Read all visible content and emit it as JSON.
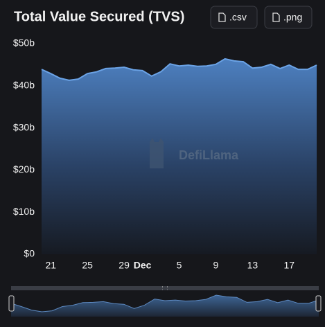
{
  "chart_data": {
    "type": "area",
    "title": "Total Value Secured (TVS)",
    "buttons": [
      ".csv",
      ".png"
    ],
    "watermark": "DefiLlama",
    "categories": [
      null,
      "21",
      null,
      null,
      null,
      "25",
      null,
      null,
      null,
      "29",
      null,
      "Dec",
      null,
      null,
      null,
      "5",
      null,
      null,
      null,
      "9",
      null,
      null,
      null,
      "13",
      null,
      null,
      null,
      "17",
      null,
      null,
      null
    ],
    "series": [
      {
        "name": "TVS",
        "color": "#6ba3e6",
        "values": [
          43.9,
          42.9,
          41.8,
          41.3,
          41.6,
          42.9,
          43.3,
          44.1,
          44.2,
          44.4,
          43.8,
          43.6,
          42.3,
          43.3,
          45.2,
          44.7,
          44.9,
          44.6,
          44.7,
          45.1,
          46.4,
          45.9,
          45.7,
          44.2,
          44.4,
          45.1,
          44.1,
          44.9,
          43.9,
          43.9,
          44.9
        ]
      }
    ],
    "ylim": [
      0,
      50
    ],
    "yticks": [
      {
        "value": 0,
        "label": "$0"
      },
      {
        "value": 10,
        "label": "$10b"
      },
      {
        "value": 20,
        "label": "$20b"
      },
      {
        "value": 30,
        "label": "$30b"
      },
      {
        "value": 40,
        "label": "$40b"
      },
      {
        "value": 50,
        "label": "$50b"
      }
    ],
    "grid": false
  }
}
